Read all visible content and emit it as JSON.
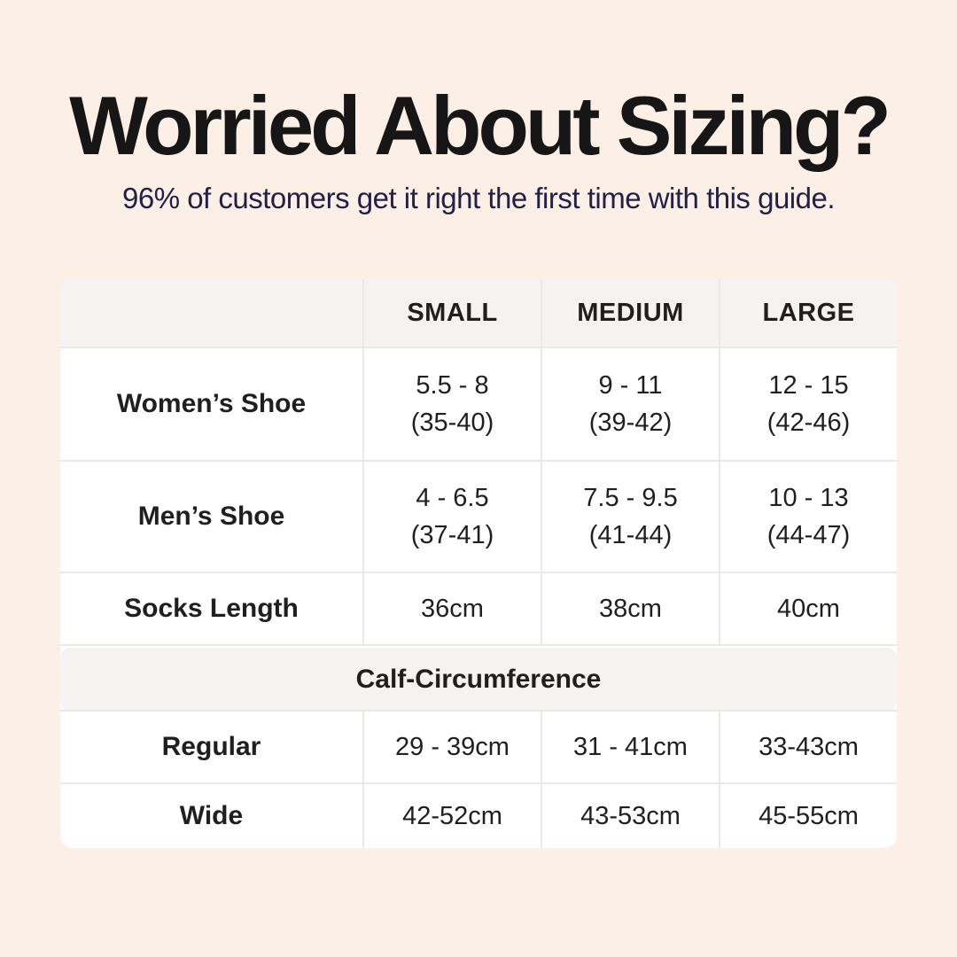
{
  "header": {
    "title": "Worried About Sizing?",
    "subtitle": "96% of customers get it right the first time with this guide."
  },
  "table": {
    "header": {
      "empty": "",
      "small": "SMALL",
      "medium": "MEDIUM",
      "large": "LARGE"
    },
    "women": {
      "label": "Women’s Shoe",
      "small_line1": "5.5 - 8",
      "small_line2": "(35-40)",
      "medium_line1": "9 - 11",
      "medium_line2": "(39-42)",
      "large_line1": "12 - 15",
      "large_line2": "(42-46)"
    },
    "men": {
      "label": "Men’s Shoe",
      "small_line1": "4 - 6.5",
      "small_line2": "(37-41)",
      "medium_line1": "7.5 - 9.5",
      "medium_line2": "(41-44)",
      "large_line1": "10 - 13",
      "large_line2": "(44-47)"
    },
    "socks": {
      "label": "Socks Length",
      "small": "36cm",
      "medium": "38cm",
      "large": "40cm"
    },
    "calf_section_title": "Calf-Circumference",
    "regular": {
      "label": "Regular",
      "small": "29 - 39cm",
      "medium": "31 - 41cm",
      "large": "33-43cm"
    },
    "wide": {
      "label": "Wide",
      "small": "42-52cm",
      "medium": "43-53cm",
      "large": "45-55cm"
    }
  },
  "chart_data": {
    "type": "table",
    "title": "Worried About Sizing?",
    "subtitle": "96% of customers get it right the first time with this guide.",
    "columns": [
      "",
      "SMALL",
      "MEDIUM",
      "LARGE"
    ],
    "rows": [
      [
        "Women’s Shoe",
        "5.5 - 8 (35-40)",
        "9 - 11 (39-42)",
        "12 - 15 (42-46)"
      ],
      [
        "Men’s Shoe",
        "4 - 6.5 (37-41)",
        "7.5 - 9.5 (41-44)",
        "10 - 13 (44-47)"
      ],
      [
        "Socks Length",
        "36cm",
        "38cm",
        "40cm"
      ],
      [
        "Calf-Circumference",
        "",
        "",
        ""
      ],
      [
        "Regular",
        "29 - 39cm",
        "31 - 41cm",
        "33-43cm"
      ],
      [
        "Wide",
        "42-52cm",
        "43-53cm",
        "45-55cm"
      ]
    ]
  },
  "colors": {
    "background": "#fcefe6",
    "card_background": "#ffffff",
    "band_background": "#f4f3f1",
    "separator": "#ebe9e6",
    "title_text": "#161616",
    "subtitle_text": "#232046",
    "table_text": "#1f1f1f"
  }
}
